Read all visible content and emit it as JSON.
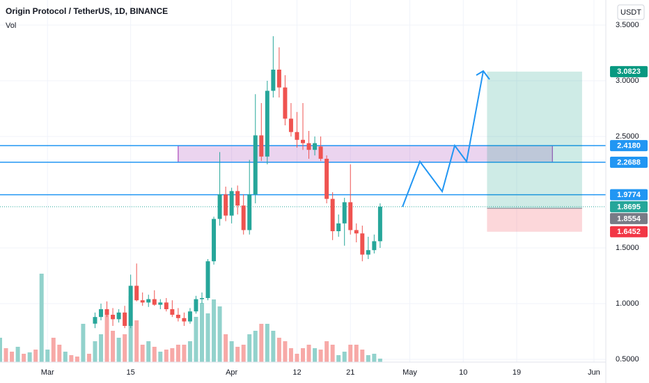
{
  "chart_data": {
    "type": "candlestick",
    "title": "Origin Protocol / TetherUS, 1D, BINANCE",
    "subtitle": "Vol",
    "currency": "USDT",
    "x": [
      "Feb 21",
      "Feb 22",
      "Feb 23",
      "Feb 24",
      "Feb 25",
      "Feb 26",
      "Feb 27",
      "Feb 28",
      "Mar 1",
      "Mar 2",
      "Mar 3",
      "Mar 4",
      "Mar 5",
      "Mar 6",
      "Mar 7",
      "Mar 8",
      "Mar 9",
      "Mar 10",
      "Mar 11",
      "Mar 12",
      "Mar 13",
      "Mar 14",
      "Mar 15",
      "Mar 16",
      "Mar 17",
      "Mar 18",
      "Mar 19",
      "Mar 20",
      "Mar 21",
      "Mar 22",
      "Mar 23",
      "Mar 24",
      "Mar 25",
      "Mar 26",
      "Mar 27",
      "Mar 28",
      "Mar 29",
      "Mar 30",
      "Mar 31",
      "Apr 1",
      "Apr 2",
      "Apr 3",
      "Apr 4",
      "Apr 5",
      "Apr 6",
      "Apr 7",
      "Apr 8",
      "Apr 9",
      "Apr 10",
      "Apr 11",
      "Apr 12",
      "Apr 13",
      "Apr 14",
      "Apr 15",
      "Apr 16",
      "Apr 17",
      "Apr 18",
      "Apr 19",
      "Apr 20",
      "Apr 21",
      "Apr 22",
      "Apr 23",
      "Apr 24",
      "Apr 25",
      "Apr 26"
    ],
    "open": [
      null,
      null,
      null,
      null,
      null,
      null,
      null,
      null,
      null,
      null,
      null,
      null,
      null,
      null,
      null,
      null,
      0.82,
      0.88,
      0.95,
      0.9,
      0.86,
      0.92,
      0.8,
      1.16,
      1.03,
      1.01,
      1.04,
      0.99,
      1.01,
      0.95,
      0.9,
      0.87,
      0.84,
      0.93,
      1.04,
      1.05,
      1.38,
      1.76,
      1.98,
      1.79,
      2.01,
      1.88,
      1.66,
      1.98,
      2.51,
      2.32,
      2.91,
      3.1,
      2.94,
      2.66,
      2.54,
      2.47,
      2.44,
      2.38,
      2.41,
      2.3,
      1.94,
      1.65,
      1.72,
      1.91,
      1.66,
      1.63,
      1.44,
      1.48,
      1.56
    ],
    "high": [
      null,
      null,
      null,
      null,
      null,
      null,
      null,
      null,
      null,
      null,
      null,
      null,
      null,
      null,
      null,
      null,
      0.92,
      1.0,
      1.02,
      0.96,
      0.95,
      0.98,
      1.26,
      1.36,
      1.1,
      1.08,
      1.12,
      1.04,
      1.05,
      1.03,
      0.96,
      0.92,
      0.96,
      1.07,
      1.1,
      1.4,
      1.78,
      2.36,
      2.05,
      2.04,
      2.06,
      1.98,
      2.29,
      2.88,
      2.8,
      3.0,
      3.4,
      3.3,
      3.05,
      2.8,
      2.72,
      2.8,
      2.55,
      2.5,
      2.5,
      2.33,
      2.0,
      1.8,
      1.95,
      2.25,
      1.72,
      1.7,
      1.6,
      1.62,
      1.9
    ],
    "low": [
      null,
      null,
      null,
      null,
      null,
      null,
      null,
      null,
      null,
      null,
      null,
      null,
      null,
      null,
      null,
      null,
      0.78,
      0.85,
      0.88,
      0.8,
      0.83,
      0.78,
      0.78,
      1.02,
      0.98,
      0.97,
      0.98,
      0.95,
      0.93,
      0.88,
      0.84,
      0.8,
      0.82,
      0.91,
      1.0,
      1.03,
      1.35,
      1.7,
      1.74,
      1.72,
      1.8,
      1.62,
      1.62,
      1.9,
      2.28,
      2.25,
      2.85,
      2.85,
      2.6,
      2.5,
      2.4,
      2.38,
      2.3,
      2.33,
      2.28,
      1.9,
      1.57,
      1.6,
      1.52,
      1.62,
      1.55,
      1.38,
      1.4,
      1.45,
      1.5
    ],
    "close": [
      null,
      null,
      null,
      null,
      null,
      null,
      null,
      null,
      null,
      null,
      null,
      null,
      null,
      null,
      null,
      null,
      0.88,
      0.95,
      0.9,
      0.86,
      0.92,
      0.8,
      1.16,
      1.03,
      1.01,
      1.04,
      0.99,
      1.01,
      0.95,
      0.9,
      0.87,
      0.84,
      0.93,
      1.04,
      1.05,
      1.38,
      1.76,
      1.98,
      1.79,
      2.01,
      1.88,
      1.66,
      1.98,
      2.51,
      2.32,
      2.91,
      3.1,
      2.94,
      2.66,
      2.54,
      2.47,
      2.44,
      2.38,
      2.44,
      2.3,
      1.94,
      1.65,
      1.72,
      1.91,
      1.66,
      1.63,
      1.44,
      1.48,
      1.56,
      1.87
    ],
    "up_color": "#26a69a",
    "down_color": "#ef5350",
    "volume": {
      "values": [
        35,
        20,
        15,
        22,
        12,
        14,
        18,
        127,
        18,
        35,
        25,
        15,
        10,
        8,
        55,
        12,
        30,
        40,
        75,
        45,
        35,
        40,
        95,
        60,
        25,
        30,
        22,
        15,
        18,
        20,
        25,
        25,
        30,
        65,
        85,
        70,
        90,
        80,
        40,
        30,
        22,
        25,
        40,
        45,
        55,
        55,
        45,
        35,
        30,
        20,
        12,
        20,
        25,
        20,
        18,
        30,
        25,
        10,
        15,
        25,
        25,
        18,
        10,
        12,
        5
      ],
      "colors": [
        "#92d2cc",
        "#f7a9a7",
        "#f7a9a7",
        "#92d2cc",
        "#f7a9a7",
        "#92d2cc",
        "#f7a9a7",
        "#92d2cc",
        "#92d2cc",
        "#f7a9a7",
        "#f7a9a7",
        "#92d2cc",
        "#f7a9a7",
        "#f7a9a7",
        "#92d2cc",
        "#f7a9a7",
        "#92d2cc",
        "#92d2cc",
        "#f7a9a7",
        "#f7a9a7",
        "#92d2cc",
        "#f7a9a7",
        "#92d2cc",
        "#f7a9a7",
        "#f7a9a7",
        "#92d2cc",
        "#f7a9a7",
        "#92d2cc",
        "#f7a9a7",
        "#f7a9a7",
        "#f7a9a7",
        "#f7a9a7",
        "#92d2cc",
        "#92d2cc",
        "#92d2cc",
        "#92d2cc",
        "#92d2cc",
        "#92d2cc",
        "#f7a9a7",
        "#92d2cc",
        "#f7a9a7",
        "#f7a9a7",
        "#92d2cc",
        "#92d2cc",
        "#f7a9a7",
        "#92d2cc",
        "#92d2cc",
        "#f7a9a7",
        "#f7a9a7",
        "#f7a9a7",
        "#f7a9a7",
        "#f7a9a7",
        "#f7a9a7",
        "#92d2cc",
        "#f7a9a7",
        "#f7a9a7",
        "#f7a9a7",
        "#92d2cc",
        "#92d2cc",
        "#f7a9a7",
        "#f7a9a7",
        "#f7a9a7",
        "#92d2cc",
        "#92d2cc",
        "#92d2cc"
      ]
    },
    "xlim": [
      "Feb 21",
      "Jun 3"
    ],
    "xticks": [
      {
        "value": "Mar 1",
        "label": "Mar"
      },
      {
        "value": "Mar 15",
        "label": "15"
      },
      {
        "value": "Apr 1",
        "label": "Apr"
      },
      {
        "value": "Apr 12",
        "label": "12"
      },
      {
        "value": "Apr 21",
        "label": "21"
      },
      {
        "value": "May 1",
        "label": "May"
      },
      {
        "value": "May 10",
        "label": "10"
      },
      {
        "value": "May 19",
        "label": "19"
      },
      {
        "value": "Jun 1",
        "label": "Jun"
      }
    ],
    "ylim": [
      0.475,
      3.725
    ],
    "yticks": [
      {
        "value": 0.5,
        "label": "0.5000"
      },
      {
        "value": 1.0,
        "label": "1.0000"
      },
      {
        "value": 1.5,
        "label": "1.5000"
      },
      {
        "value": 2.5,
        "label": "2.5000"
      },
      {
        "value": 3.0,
        "label": "3.0000"
      },
      {
        "value": 3.5,
        "label": "3.5000"
      }
    ],
    "grid": true,
    "levels": [
      {
        "value": 2.418,
        "label": "2.4180",
        "color": "#2196f3"
      },
      {
        "value": 2.2688,
        "label": "2.2688",
        "color": "#2196f3"
      },
      {
        "value": 1.9774,
        "label": "1.9774",
        "color": "#2196f3"
      }
    ],
    "current_price": {
      "value": 1.8695,
      "label": "1.8695",
      "color": "#26a69a"
    },
    "zone": {
      "start": "Mar 23",
      "end": "May 25",
      "top": 2.418,
      "bottom": 2.2688,
      "color": "#9c27b0"
    },
    "position": {
      "start": "May 14",
      "end": "May 30",
      "target": {
        "value": 3.0823,
        "label": "3.0823",
        "color": "#089981"
      },
      "entry": {
        "value": 1.8554,
        "label": "1.8554",
        "color": "#787b86"
      },
      "stop": {
        "value": 1.6452,
        "label": "1.6452",
        "color": "#f23645"
      }
    }
  }
}
